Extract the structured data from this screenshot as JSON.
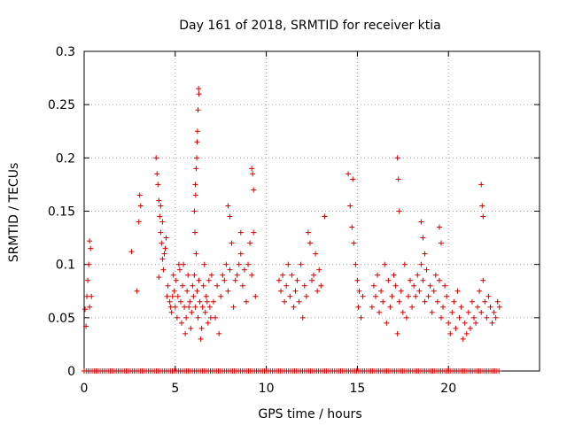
{
  "chart_data": {
    "type": "scatter",
    "title": "Day 161 of 2018, SRMTID for receiver ktia",
    "xlabel": "GPS time / hours",
    "ylabel": "SRMTID / TECUs",
    "xlim": [
      0,
      25
    ],
    "ylim": [
      0,
      0.3
    ],
    "xticks": [
      0,
      5,
      10,
      15,
      20
    ],
    "xtick_labels": [
      "0",
      "5",
      "10",
      "15",
      "20"
    ],
    "yticks": [
      0,
      0.05,
      0.1,
      0.15,
      0.2,
      0.25,
      0.3
    ],
    "ytick_labels": [
      "0",
      "0.05",
      "0.1",
      "0.15",
      "0.2",
      "0.25",
      "0.3"
    ],
    "grid": true,
    "marker": "+",
    "color": "#d40000",
    "series": [
      {
        "name": "SRMTID",
        "x": [
          0.05,
          0.1,
          0.15,
          0.2,
          0.25,
          0.3,
          0.3,
          0.35,
          0.4,
          2.6,
          2.9,
          3.0,
          3.05,
          3.1,
          3.95,
          4.0,
          4.05,
          4.1,
          4.15,
          4.2,
          4.25,
          4.3,
          4.35,
          4.4,
          4.45,
          4.5,
          4.3,
          4.2,
          4.1,
          4.55,
          4.6,
          4.7,
          4.75,
          4.8,
          4.85,
          4.9,
          4.95,
          5.0,
          5.05,
          5.1,
          5.15,
          5.2,
          5.25,
          5.3,
          5.35,
          5.4,
          5.45,
          5.5,
          5.55,
          5.6,
          5.65,
          5.7,
          5.75,
          5.8,
          5.85,
          5.9,
          5.95,
          6.0,
          6.05,
          6.1,
          6.15,
          6.2,
          6.25,
          6.3,
          6.35,
          6.4,
          6.45,
          6.5,
          6.55,
          6.6,
          6.65,
          6.7,
          6.75,
          6.8,
          6.85,
          6.9,
          6.95,
          7.0,
          6.05,
          6.1,
          6.15,
          6.2,
          6.22,
          6.25,
          6.28,
          6.3,
          6.18,
          6.12,
          6.08,
          7.1,
          7.2,
          7.3,
          7.4,
          7.5,
          7.6,
          7.7,
          7.8,
          7.9,
          8.0,
          8.1,
          8.2,
          8.3,
          8.4,
          8.5,
          8.6,
          8.7,
          8.8,
          8.9,
          9.0,
          9.1,
          9.2,
          9.3,
          9.4,
          7.9,
          8.0,
          8.6,
          9.2,
          9.25,
          9.3,
          10.7,
          10.8,
          10.9,
          11.0,
          11.1,
          11.2,
          11.3,
          11.4,
          11.5,
          11.6,
          11.7,
          11.8,
          11.9,
          12.0,
          12.1,
          12.2,
          12.3,
          12.4,
          12.5,
          12.6,
          12.7,
          12.8,
          12.9,
          13.0,
          13.2,
          14.5,
          14.6,
          14.7,
          14.75,
          14.8,
          14.9,
          15.0,
          15.05,
          15.1,
          15.2,
          15.3,
          15.8,
          15.9,
          16.0,
          16.1,
          16.2,
          16.3,
          16.4,
          16.5,
          16.6,
          16.7,
          16.8,
          16.9,
          17.0,
          17.1,
          17.2,
          17.3,
          17.4,
          17.5,
          17.6,
          17.7,
          17.8,
          17.9,
          17.2,
          17.25,
          17.3,
          18.0,
          18.1,
          18.2,
          18.3,
          18.4,
          18.5,
          18.6,
          18.7,
          18.8,
          18.9,
          19.0,
          19.1,
          19.2,
          19.3,
          19.4,
          19.5,
          19.6,
          19.7,
          19.8,
          19.9,
          18.5,
          18.6,
          18.7,
          19.5,
          19.6,
          20.0,
          20.1,
          20.2,
          20.3,
          20.4,
          20.5,
          20.6,
          20.7,
          20.8,
          20.9,
          21.0,
          21.1,
          21.2,
          21.3,
          21.4,
          21.5,
          21.6,
          21.7,
          21.8,
          21.9,
          22.0,
          22.1,
          22.2,
          22.3,
          22.4,
          22.5,
          22.6,
          22.7,
          22.8,
          21.8,
          21.85,
          21.9
        ],
        "y": [
          0.058,
          0.042,
          0.07,
          0.085,
          0.1,
          0.122,
          0.06,
          0.115,
          0.07,
          0.112,
          0.075,
          0.14,
          0.165,
          0.155,
          0.2,
          0.185,
          0.175,
          0.16,
          0.145,
          0.13,
          0.12,
          0.105,
          0.095,
          0.11,
          0.115,
          0.125,
          0.14,
          0.155,
          0.088,
          0.07,
          0.08,
          0.065,
          0.06,
          0.055,
          0.07,
          0.09,
          0.075,
          0.06,
          0.085,
          0.05,
          0.07,
          0.1,
          0.095,
          0.065,
          0.045,
          0.08,
          0.1,
          0.06,
          0.035,
          0.05,
          0.075,
          0.09,
          0.06,
          0.065,
          0.04,
          0.055,
          0.08,
          0.07,
          0.09,
          0.06,
          0.11,
          0.075,
          0.05,
          0.085,
          0.065,
          0.03,
          0.04,
          0.06,
          0.08,
          0.1,
          0.055,
          0.07,
          0.065,
          0.045,
          0.085,
          0.06,
          0.05,
          0.09,
          0.15,
          0.175,
          0.19,
          0.215,
          0.225,
          0.245,
          0.265,
          0.26,
          0.2,
          0.165,
          0.13,
          0.065,
          0.05,
          0.08,
          0.035,
          0.07,
          0.09,
          0.085,
          0.1,
          0.075,
          0.095,
          0.12,
          0.06,
          0.085,
          0.09,
          0.1,
          0.11,
          0.08,
          0.095,
          0.065,
          0.1,
          0.12,
          0.09,
          0.13,
          0.07,
          0.155,
          0.145,
          0.13,
          0.19,
          0.185,
          0.17,
          0.085,
          0.075,
          0.09,
          0.065,
          0.08,
          0.1,
          0.07,
          0.09,
          0.06,
          0.075,
          0.085,
          0.065,
          0.1,
          0.05,
          0.08,
          0.07,
          0.13,
          0.12,
          0.085,
          0.09,
          0.11,
          0.075,
          0.095,
          0.08,
          0.145,
          0.185,
          0.155,
          0.135,
          0.18,
          0.12,
          0.1,
          0.085,
          0.06,
          0.075,
          0.05,
          0.07,
          0.06,
          0.08,
          0.07,
          0.09,
          0.055,
          0.075,
          0.065,
          0.1,
          0.045,
          0.085,
          0.06,
          0.07,
          0.09,
          0.08,
          0.035,
          0.065,
          0.075,
          0.055,
          0.1,
          0.05,
          0.07,
          0.085,
          0.2,
          0.18,
          0.15,
          0.06,
          0.08,
          0.07,
          0.09,
          0.075,
          0.1,
          0.085,
          0.065,
          0.095,
          0.07,
          0.08,
          0.055,
          0.075,
          0.09,
          0.065,
          0.085,
          0.05,
          0.06,
          0.08,
          0.07,
          0.14,
          0.125,
          0.11,
          0.135,
          0.12,
          0.045,
          0.035,
          0.055,
          0.065,
          0.04,
          0.075,
          0.05,
          0.06,
          0.03,
          0.045,
          0.035,
          0.055,
          0.04,
          0.065,
          0.05,
          0.045,
          0.06,
          0.075,
          0.055,
          0.085,
          0.065,
          0.05,
          0.07,
          0.06,
          0.045,
          0.055,
          0.05,
          0.065,
          0.06,
          0.175,
          0.155,
          0.145
        ],
        "zero_band_x_start": 0,
        "zero_band_x_end": 22.8
      }
    ]
  }
}
